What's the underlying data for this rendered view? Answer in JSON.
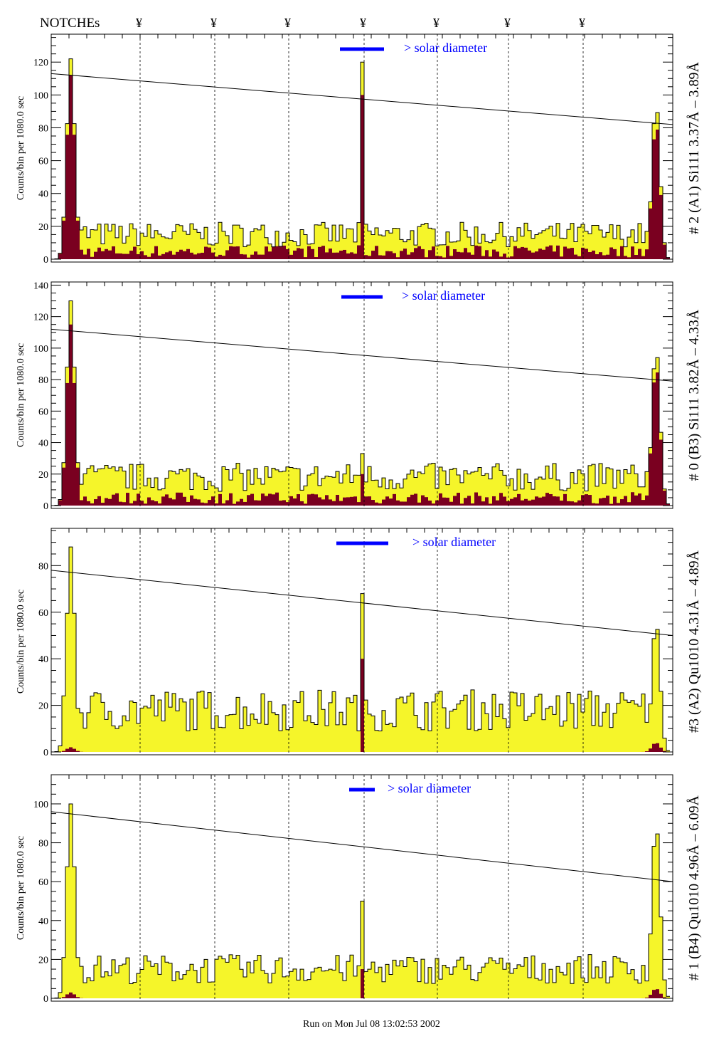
{
  "header": {
    "notches_label": "NOTCHEs",
    "notch_symbol": "¥",
    "notch_count": 7
  },
  "footer": {
    "run_text": "Run on Mon Jul 08 13:02:53 2002"
  },
  "colors": {
    "yellow": "#f5f52a",
    "dark": "#7a0020",
    "legend": "#0000ff"
  },
  "chart_data": [
    {
      "type": "bar",
      "title": "# 2 (A1) Si111  3.37Å – 3.89Å",
      "ylabel": "Counts/bin per   1080.0 sec",
      "legend": "> solar diameter",
      "ylim": [
        0,
        137
      ],
      "yticks": [
        0,
        20,
        40,
        60,
        80,
        100,
        120
      ],
      "baseline_total": 15,
      "baseline_dark": 5,
      "left_peak": [
        122,
        112
      ],
      "right_peak": [
        95,
        84
      ],
      "center_spike": [
        120,
        100
      ],
      "line": [
        113,
        82
      ]
    },
    {
      "type": "bar",
      "title": "# 0 (B3) Si111  3.82Å – 4.33Å",
      "ylabel": "Counts/bin per   1080.0 sec",
      "legend": "> solar diameter",
      "ylim": [
        0,
        142
      ],
      "yticks": [
        0,
        20,
        40,
        60,
        80,
        100,
        120,
        140
      ],
      "baseline_total": 18,
      "baseline_dark": 5,
      "left_peak": [
        130,
        115
      ],
      "right_peak": [
        100,
        90
      ],
      "center_spike": [
        33,
        20
      ],
      "line": [
        112,
        79
      ]
    },
    {
      "type": "bar",
      "title": "#3 (A2) Qu1010  4.31Å – 4.89Å",
      "ylabel": "Counts/bin per   1080.0 sec",
      "legend": "> solar diameter",
      "ylim": [
        0,
        96
      ],
      "yticks": [
        0,
        20,
        40,
        60,
        80
      ],
      "baseline_total": 18,
      "baseline_dark": 0,
      "left_peak": [
        88,
        2
      ],
      "right_peak": [
        56,
        4
      ],
      "center_spike": [
        68,
        40
      ],
      "line": [
        78,
        50
      ]
    },
    {
      "type": "bar",
      "title": "# 1 (B4) Qu1010 4.96Å – 6.09Å",
      "ylabel": "Counts/bin per   1080.0 sec",
      "legend": "> solar diameter",
      "ylim": [
        0,
        115
      ],
      "yticks": [
        0,
        20,
        40,
        60,
        80,
        100
      ],
      "baseline_total": 15,
      "baseline_dark": 0,
      "left_peak": [
        100,
        3
      ],
      "right_peak": [
        90,
        5
      ],
      "center_spike": [
        50,
        15
      ],
      "line": [
        96,
        60
      ]
    }
  ]
}
